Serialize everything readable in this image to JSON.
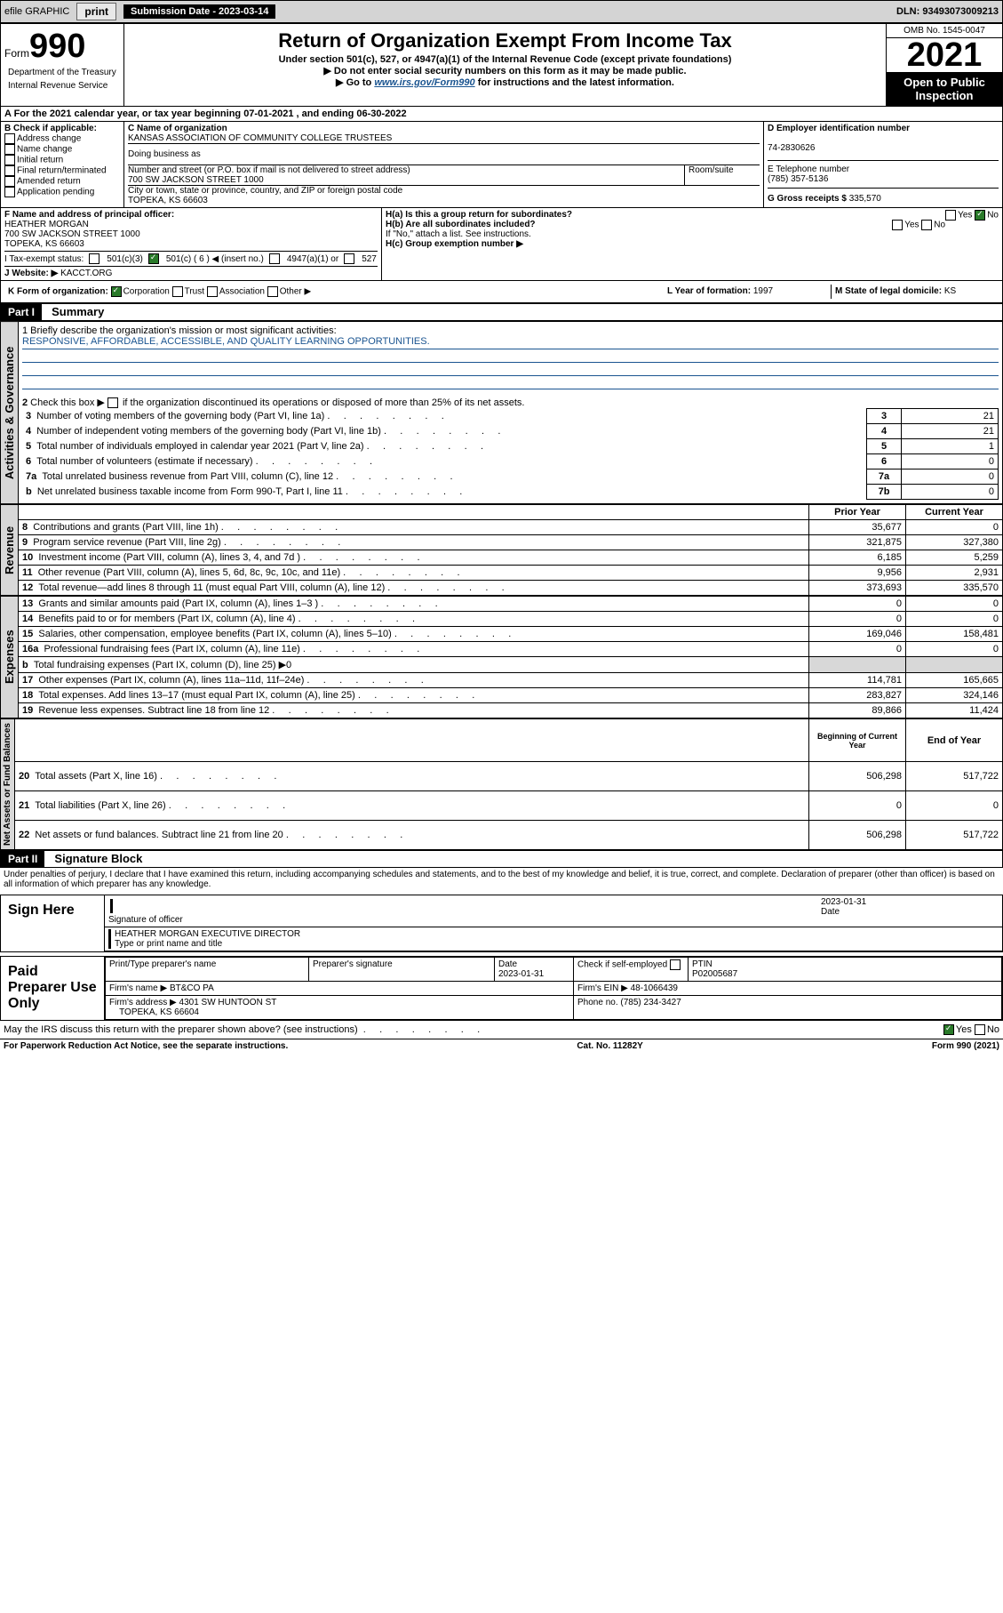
{
  "topbar": {
    "efile": "efile GRAPHIC",
    "print": "print",
    "submission_label": "Submission Date - 2023-03-14",
    "dln": "DLN: 93493073009213"
  },
  "header": {
    "form_small": "Form",
    "form_num": "990",
    "title": "Return of Organization Exempt From Income Tax",
    "subtitle": "Under section 501(c), 527, or 4947(a)(1) of the Internal Revenue Code (except private foundations)",
    "warn": "▶ Do not enter social security numbers on this form as it may be made public.",
    "goto_pre": "▶ Go to ",
    "goto_link": "www.irs.gov/Form990",
    "goto_post": " for instructions and the latest information.",
    "omb": "OMB No. 1545-0047",
    "year": "2021",
    "open": "Open to Public Inspection",
    "dept": "Department of the Treasury",
    "irs": "Internal Revenue Service"
  },
  "section_a": {
    "line": "A For the 2021 calendar year, or tax year beginning 07-01-2021   , and ending 06-30-2022"
  },
  "section_b": {
    "label": "B Check if applicable:",
    "items": [
      "Address change",
      "Name change",
      "Initial return",
      "Final return/terminated",
      "Amended return",
      "Application pending"
    ]
  },
  "section_c": {
    "name_label": "C Name of organization",
    "name": "KANSAS ASSOCIATION OF COMMUNITY COLLEGE TRUSTEES",
    "dba_label": "Doing business as",
    "street_label": "Number and street (or P.O. box if mail is not delivered to street address)",
    "room_label": "Room/suite",
    "street": "700 SW JACKSON STREET 1000",
    "city_label": "City or town, state or province, country, and ZIP or foreign postal code",
    "city": "TOPEKA, KS  66603"
  },
  "section_d": {
    "label": "D Employer identification number",
    "value": "74-2830626"
  },
  "section_e": {
    "label": "E Telephone number",
    "value": "(785) 357-5136"
  },
  "section_g": {
    "label": "G Gross receipts $",
    "value": "335,570"
  },
  "section_f": {
    "label": "F Name and address of principal officer:",
    "name": "HEATHER MORGAN",
    "addr1": "700 SW JACKSON STREET 1000",
    "addr2": "TOPEKA, KS  66603"
  },
  "section_h": {
    "ha": "H(a)  Is this a group return for subordinates?",
    "hb": "H(b)  Are all subordinates included?",
    "hb_note": "If \"No,\" attach a list. See instructions.",
    "hc": "H(c)  Group exemption number ▶",
    "yes": "Yes",
    "no": "No"
  },
  "section_i": {
    "label": "I     Tax-exempt status:",
    "opt1": "501(c)(3)",
    "opt2": "501(c) ( 6 ) ◀ (insert no.)",
    "opt3": "4947(a)(1) or",
    "opt4": "527"
  },
  "section_j": {
    "label": "J    Website: ▶",
    "value": "KACCT.ORG"
  },
  "section_k": {
    "label": "K Form of organization:",
    "corp": "Corporation",
    "trust": "Trust",
    "assoc": "Association",
    "other": "Other ▶"
  },
  "section_l": {
    "label": "L Year of formation:",
    "value": "1997"
  },
  "section_m": {
    "label": "M State of legal domicile:",
    "value": "KS"
  },
  "part1": {
    "header": "Part I",
    "title": "Summary",
    "q1": "1  Briefly describe the organization's mission or most significant activities:",
    "mission": "RESPONSIVE, AFFORDABLE, ACCESSIBLE, AND QUALITY LEARNING OPPORTUNITIES.",
    "q2": "2   Check this box ▶       if the organization discontinued its operations or disposed of more than 25% of its net assets.",
    "lines": [
      {
        "n": "3",
        "desc": "Number of voting members of the governing body (Part VI, line 1a)",
        "k": "3",
        "v": "21"
      },
      {
        "n": "4",
        "desc": "Number of independent voting members of the governing body (Part VI, line 1b)",
        "k": "4",
        "v": "21"
      },
      {
        "n": "5",
        "desc": "Total number of individuals employed in calendar year 2021 (Part V, line 2a)",
        "k": "5",
        "v": "1"
      },
      {
        "n": "6",
        "desc": "Total number of volunteers (estimate if necessary)",
        "k": "6",
        "v": "0"
      },
      {
        "n": "7a",
        "desc": "Total unrelated business revenue from Part VIII, column (C), line 12",
        "k": "7a",
        "v": "0"
      },
      {
        "n": "b",
        "desc": "Net unrelated business taxable income from Form 990-T, Part I, line 11",
        "k": "7b",
        "v": "0"
      }
    ],
    "col_prior": "Prior Year",
    "col_current": "Current Year",
    "revenue": [
      {
        "n": "8",
        "desc": "Contributions and grants (Part VIII, line 1h)",
        "p": "35,677",
        "c": "0"
      },
      {
        "n": "9",
        "desc": "Program service revenue (Part VIII, line 2g)",
        "p": "321,875",
        "c": "327,380"
      },
      {
        "n": "10",
        "desc": "Investment income (Part VIII, column (A), lines 3, 4, and 7d )",
        "p": "6,185",
        "c": "5,259"
      },
      {
        "n": "11",
        "desc": "Other revenue (Part VIII, column (A), lines 5, 6d, 8c, 9c, 10c, and 11e)",
        "p": "9,956",
        "c": "2,931"
      },
      {
        "n": "12",
        "desc": "Total revenue—add lines 8 through 11 (must equal Part VIII, column (A), line 12)",
        "p": "373,693",
        "c": "335,570"
      }
    ],
    "expenses": [
      {
        "n": "13",
        "desc": "Grants and similar amounts paid (Part IX, column (A), lines 1–3 )",
        "p": "0",
        "c": "0"
      },
      {
        "n": "14",
        "desc": "Benefits paid to or for members (Part IX, column (A), line 4)",
        "p": "0",
        "c": "0"
      },
      {
        "n": "15",
        "desc": "Salaries, other compensation, employee benefits (Part IX, column (A), lines 5–10)",
        "p": "169,046",
        "c": "158,481"
      },
      {
        "n": "16a",
        "desc": "Professional fundraising fees (Part IX, column (A), line 11e)",
        "p": "0",
        "c": "0"
      },
      {
        "n": "b",
        "desc": "Total fundraising expenses (Part IX, column (D), line 25) ▶0",
        "p": "",
        "c": ""
      },
      {
        "n": "17",
        "desc": "Other expenses (Part IX, column (A), lines 11a–11d, 11f–24e)",
        "p": "114,781",
        "c": "165,665"
      },
      {
        "n": "18",
        "desc": "Total expenses. Add lines 13–17 (must equal Part IX, column (A), line 25)",
        "p": "283,827",
        "c": "324,146"
      },
      {
        "n": "19",
        "desc": "Revenue less expenses. Subtract line 18 from line 12",
        "p": "89,866",
        "c": "11,424"
      }
    ],
    "col_begin": "Beginning of Current Year",
    "col_end": "End of Year",
    "netassets": [
      {
        "n": "20",
        "desc": "Total assets (Part X, line 16)",
        "p": "506,298",
        "c": "517,722"
      },
      {
        "n": "21",
        "desc": "Total liabilities (Part X, line 26)",
        "p": "0",
        "c": "0"
      },
      {
        "n": "22",
        "desc": "Net assets or fund balances. Subtract line 21 from line 20",
        "p": "506,298",
        "c": "517,722"
      }
    ],
    "vert_activities": "Activities & Governance",
    "vert_revenue": "Revenue",
    "vert_expenses": "Expenses",
    "vert_net": "Net Assets or Fund Balances"
  },
  "part2": {
    "header": "Part II",
    "title": "Signature Block",
    "decl": "Under penalties of perjury, I declare that I have examined this return, including accompanying schedules and statements, and to the best of my knowledge and belief, it is true, correct, and complete. Declaration of preparer (other than officer) is based on all information of which preparer has any knowledge.",
    "sign_here": "Sign Here",
    "sig_officer": "Signature of officer",
    "sig_date": "2023-01-31",
    "sig_date_label": "Date",
    "officer_name": "HEATHER MORGAN  EXECUTIVE DIRECTOR",
    "officer_label": "Type or print name and title",
    "paid": "Paid Preparer Use Only",
    "prep_name_label": "Print/Type preparer's name",
    "prep_sig_label": "Preparer's signature",
    "prep_date_label": "Date",
    "prep_date": "2023-01-31",
    "check_self": "Check        if self-employed",
    "ptin_label": "PTIN",
    "ptin": "P02005687",
    "firm_name_label": "Firm's name     ▶",
    "firm_name": "BT&CO PA",
    "firm_ein_label": "Firm's EIN ▶",
    "firm_ein": "48-1066439",
    "firm_addr_label": "Firm's address ▶",
    "firm_addr1": "4301 SW HUNTOON ST",
    "firm_addr2": "TOPEKA, KS  66604",
    "firm_phone_label": "Phone no.",
    "firm_phone": "(785) 234-3427",
    "may_irs": "May the IRS discuss this return with the preparer shown above? (see instructions)"
  },
  "footer": {
    "left": "For Paperwork Reduction Act Notice, see the separate instructions.",
    "center": "Cat. No. 11282Y",
    "right": "Form 990 (2021)"
  }
}
